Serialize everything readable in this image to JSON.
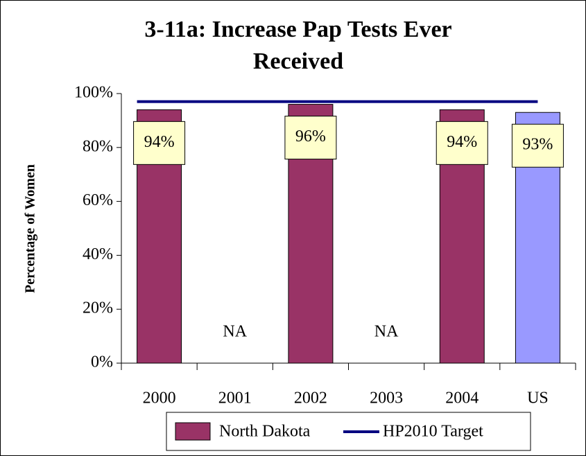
{
  "chart_data": {
    "type": "bar",
    "title": "3-11a: Increase Pap Tests Ever Received",
    "y_label": "Percentage of Women",
    "categories": [
      "2000",
      "2001",
      "2002",
      "2003",
      "2004",
      "US"
    ],
    "series": [
      {
        "name": "North Dakota",
        "color": "#993366",
        "values": [
          94,
          null,
          96,
          null,
          94,
          93
        ],
        "value_labels": [
          "94%",
          "NA",
          "96%",
          "NA",
          "94%",
          "93%"
        ],
        "colors": [
          "#993366",
          "#993366",
          "#993366",
          "#993366",
          "#993366",
          "#9999ff"
        ]
      }
    ],
    "target": {
      "name": "HP2010 Target",
      "color": "#000080",
      "value": 97
    },
    "ylim": [
      0,
      100
    ],
    "yticks": [
      {
        "value": 0,
        "label": "0%"
      },
      {
        "value": 20,
        "label": "20%"
      },
      {
        "value": 40,
        "label": "40%"
      },
      {
        "value": 60,
        "label": "60%"
      },
      {
        "value": 80,
        "label": "80%"
      },
      {
        "value": 100,
        "label": "100%"
      }
    ],
    "legend": "bottom"
  }
}
